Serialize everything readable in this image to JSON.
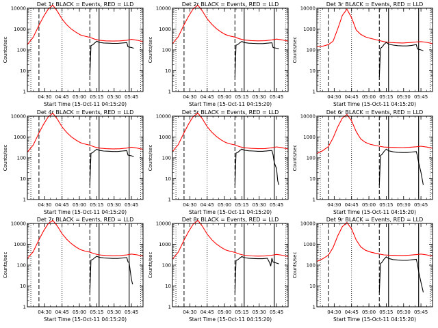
{
  "window": {
    "title": ""
  },
  "colors": {
    "events": "#000000",
    "lld": "#ff0000",
    "background": "#ffffff",
    "axes": "#000000"
  },
  "shared": {
    "ylabel": "Counts/sec",
    "xlabel": "Start Time (15-Oct-11 04:15:20)",
    "xticks": [
      "04:30",
      "04:45",
      "05:00",
      "05:15",
      "05:30",
      "05:45"
    ],
    "yticks": [
      "1",
      "10",
      "100",
      "1000",
      "10000"
    ]
  },
  "chart_data": [
    {
      "type": "line",
      "title": "Det 1r BLACK = Events, RED = LLD",
      "xlabel": "Start Time (15-Oct-11 04:15:20)",
      "ylabel": "Counts/sec",
      "x_range_minutes": [
        0,
        100
      ],
      "ylim": [
        1,
        10000
      ],
      "yscale": "log",
      "vlines": {
        "dotted": [
          3,
          30,
          98
        ],
        "dashed": [
          10,
          54
        ],
        "solid": [
          62,
          88
        ]
      },
      "series": [
        {
          "name": "RED = LLD",
          "color": "#ff0000",
          "x": [
            0,
            5,
            10,
            14,
            18,
            22,
            26,
            30,
            34,
            38,
            42,
            46,
            50,
            54,
            58,
            62,
            68,
            74,
            80,
            86,
            90,
            95,
            100
          ],
          "y": [
            180,
            400,
            1500,
            4000,
            9000,
            14000,
            7000,
            3000,
            1600,
            1000,
            700,
            520,
            450,
            400,
            330,
            290,
            270,
            265,
            270,
            290,
            320,
            290,
            250
          ]
        },
        {
          "name": "BLACK = Events",
          "color": "#000000",
          "x": [
            54,
            55,
            56,
            57,
            58,
            60,
            62,
            66,
            70,
            74,
            78,
            82,
            86,
            87,
            90,
            92
          ],
          "y": [
            6,
            160,
            170,
            185,
            210,
            260,
            230,
            215,
            210,
            205,
            205,
            215,
            225,
            140,
            130,
            120
          ]
        }
      ]
    },
    {
      "type": "line",
      "title": "Det 2r BLACK = Events, RED = LLD",
      "xlabel": "Start Time (15-Oct-11 04:15:20)",
      "ylabel": "Counts/sec",
      "x_range_minutes": [
        0,
        100
      ],
      "ylim": [
        1,
        10000
      ],
      "yscale": "log",
      "vlines": {
        "dotted": [
          3,
          30,
          98
        ],
        "dashed": [
          10,
          54
        ],
        "solid": [
          62,
          88
        ]
      },
      "series": [
        {
          "name": "RED = LLD",
          "color": "#ff0000",
          "x": [
            0,
            5,
            10,
            14,
            18,
            22,
            26,
            30,
            34,
            38,
            42,
            46,
            50,
            54,
            58,
            62,
            68,
            74,
            80,
            86,
            90,
            95,
            100
          ],
          "y": [
            200,
            420,
            1600,
            4200,
            9500,
            14000,
            7200,
            3100,
            1700,
            1050,
            720,
            540,
            460,
            410,
            340,
            300,
            280,
            270,
            275,
            300,
            330,
            300,
            260
          ]
        },
        {
          "name": "BLACK = Events",
          "color": "#000000",
          "x": [
            54,
            55,
            56,
            57,
            58,
            60,
            62,
            66,
            70,
            74,
            78,
            82,
            86,
            87,
            90,
            92
          ],
          "y": [
            5,
            170,
            175,
            190,
            215,
            255,
            225,
            210,
            205,
            200,
            200,
            210,
            220,
            130,
            120,
            110
          ]
        }
      ]
    },
    {
      "type": "line",
      "title": "Det 3r BLACK = Events, RED = LLD",
      "xlabel": "Start Time (15-Oct-11 04:15:20)",
      "ylabel": "Counts/sec",
      "x_range_minutes": [
        0,
        100
      ],
      "ylim": [
        1,
        10000
      ],
      "yscale": "log",
      "vlines": {
        "dotted": [
          3,
          30,
          98
        ],
        "dashed": [
          10,
          54
        ],
        "solid": [
          62,
          88
        ]
      },
      "series": [
        {
          "name": "RED = LLD",
          "color": "#ff0000",
          "x": [
            0,
            5,
            10,
            14,
            18,
            22,
            26,
            30,
            34,
            38,
            42,
            46,
            50,
            54,
            58,
            62,
            68,
            74,
            80,
            86,
            90,
            95,
            100
          ],
          "y": [
            140,
            150,
            180,
            260,
            1000,
            4500,
            9000,
            3500,
            900,
            550,
            420,
            360,
            320,
            280,
            250,
            230,
            220,
            215,
            225,
            240,
            250,
            230,
            200
          ]
        },
        {
          "name": "BLACK = Events",
          "color": "#000000",
          "x": [
            54,
            55,
            56,
            57,
            58,
            60,
            62,
            66,
            70,
            74,
            78,
            82,
            86,
            87,
            90,
            92
          ],
          "y": [
            5,
            120,
            130,
            150,
            180,
            230,
            190,
            170,
            160,
            155,
            155,
            165,
            180,
            110,
            100,
            90
          ]
        }
      ]
    },
    {
      "type": "line",
      "title": "Det 4r BLACK = Events, RED = LLD",
      "xlabel": "Start Time (15-Oct-11 04:15:20)",
      "ylabel": "Counts/sec",
      "x_range_minutes": [
        0,
        100
      ],
      "ylim": [
        1,
        10000
      ],
      "yscale": "log",
      "vlines": {
        "dotted": [
          3,
          30,
          98
        ],
        "dashed": [
          10,
          54
        ],
        "solid": [
          62,
          88
        ]
      },
      "series": [
        {
          "name": "RED = LLD",
          "color": "#ff0000",
          "x": [
            0,
            5,
            10,
            14,
            18,
            22,
            26,
            30,
            34,
            38,
            42,
            46,
            50,
            54,
            58,
            62,
            68,
            74,
            80,
            86,
            90,
            95,
            100
          ],
          "y": [
            190,
            410,
            1550,
            4100,
            9200,
            14000,
            7100,
            3050,
            1650,
            1020,
            710,
            530,
            455,
            405,
            335,
            295,
            275,
            268,
            272,
            295,
            325,
            295,
            255
          ]
        },
        {
          "name": "BLACK = Events",
          "color": "#000000",
          "x": [
            54,
            55,
            56,
            57,
            58,
            60,
            62,
            66,
            70,
            74,
            78,
            82,
            86,
            87,
            90,
            92
          ],
          "y": [
            5,
            165,
            172,
            188,
            212,
            258,
            228,
            212,
            208,
            202,
            202,
            212,
            222,
            135,
            125,
            115
          ]
        }
      ]
    },
    {
      "type": "line",
      "title": "Det 5r BLACK = Events, RED = LLD",
      "xlabel": "Start Time (15-Oct-11 04:15:20)",
      "ylabel": "Counts/sec",
      "x_range_minutes": [
        0,
        100
      ],
      "ylim": [
        1,
        10000
      ],
      "yscale": "log",
      "vlines": {
        "dotted": [
          3,
          30,
          98
        ],
        "dashed": [
          10,
          54
        ],
        "solid": [
          62,
          88
        ]
      },
      "series": [
        {
          "name": "RED = LLD",
          "color": "#ff0000",
          "x": [
            0,
            5,
            10,
            14,
            18,
            22,
            26,
            30,
            34,
            38,
            42,
            46,
            50,
            54,
            58,
            62,
            68,
            74,
            80,
            86,
            90,
            95,
            100
          ],
          "y": [
            200,
            430,
            1600,
            4300,
            9600,
            14000,
            7300,
            3150,
            1700,
            1060,
            730,
            545,
            465,
            415,
            345,
            305,
            285,
            275,
            280,
            305,
            335,
            305,
            265
          ]
        },
        {
          "name": "BLACK = Events",
          "color": "#000000",
          "x": [
            54,
            55,
            56,
            57,
            58,
            60,
            62,
            66,
            70,
            74,
            78,
            82,
            86,
            87,
            88,
            90,
            91,
            92
          ],
          "y": [
            5,
            170,
            178,
            192,
            218,
            262,
            232,
            218,
            212,
            206,
            206,
            216,
            226,
            140,
            60,
            30,
            8,
            5
          ]
        }
      ]
    },
    {
      "type": "line",
      "title": "Det 6r BLACK = Events, RED = LLD",
      "xlabel": "Start Time (15-Oct-11 04:15:20)",
      "ylabel": "Counts/sec",
      "x_range_minutes": [
        0,
        100
      ],
      "ylim": [
        1,
        10000
      ],
      "yscale": "log",
      "vlines": {
        "dotted": [
          3,
          30,
          98
        ],
        "dashed": [
          10,
          54
        ],
        "solid": [
          62,
          88
        ]
      },
      "series": [
        {
          "name": "RED = LLD",
          "color": "#ff0000",
          "x": [
            0,
            5,
            10,
            14,
            18,
            22,
            26,
            30,
            34,
            38,
            42,
            46,
            50,
            54,
            58,
            62,
            68,
            74,
            80,
            86,
            90,
            95,
            100
          ],
          "y": [
            160,
            220,
            350,
            900,
            3000,
            8000,
            12000,
            6000,
            1800,
            800,
            550,
            450,
            400,
            360,
            330,
            320,
            315,
            310,
            320,
            340,
            360,
            330,
            290
          ]
        },
        {
          "name": "BLACK = Events",
          "color": "#000000",
          "x": [
            54,
            55,
            56,
            57,
            58,
            60,
            62,
            66,
            70,
            74,
            78,
            82,
            86,
            87,
            88,
            90,
            92
          ],
          "y": [
            5,
            130,
            140,
            165,
            200,
            260,
            220,
            195,
            185,
            180,
            180,
            190,
            200,
            120,
            60,
            20,
            5
          ]
        }
      ]
    },
    {
      "type": "line",
      "title": "Det 7r BLACK = Events, RED = LLD",
      "xlabel": "Start Time (15-Oct-11 04:15:20)",
      "ylabel": "Counts/sec",
      "x_range_minutes": [
        0,
        100
      ],
      "ylim": [
        1,
        10000
      ],
      "yscale": "log",
      "vlines": {
        "dotted": [
          3,
          30,
          98
        ],
        "dashed": [
          10,
          54
        ],
        "solid": [
          62,
          88
        ]
      },
      "series": [
        {
          "name": "RED = LLD",
          "color": "#ff0000",
          "x": [
            0,
            5,
            10,
            14,
            18,
            22,
            26,
            30,
            34,
            38,
            42,
            46,
            50,
            54,
            58,
            62,
            68,
            74,
            80,
            86,
            90,
            95,
            100
          ],
          "y": [
            210,
            440,
            1650,
            4400,
            9800,
            14000,
            7400,
            3200,
            1750,
            1080,
            740,
            550,
            470,
            420,
            350,
            310,
            290,
            280,
            285,
            310,
            340,
            310,
            270
          ]
        },
        {
          "name": "BLACK = Events",
          "color": "#000000",
          "x": [
            54,
            55,
            56,
            57,
            58,
            60,
            62,
            66,
            70,
            74,
            78,
            82,
            86,
            87,
            88,
            90,
            91
          ],
          "y": [
            5,
            175,
            182,
            196,
            222,
            266,
            236,
            222,
            216,
            210,
            210,
            220,
            230,
            145,
            130,
            20,
            12
          ]
        }
      ]
    },
    {
      "type": "line",
      "title": "Det 8r BLACK = Events, RED = LLD",
      "xlabel": "Start Time (15-Oct-11 04:15:20)",
      "ylabel": "Counts/sec",
      "x_range_minutes": [
        0,
        100
      ],
      "ylim": [
        1,
        10000
      ],
      "yscale": "log",
      "vlines": {
        "dotted": [
          3,
          30,
          98
        ],
        "dashed": [
          10,
          54
        ],
        "solid": [
          62,
          88
        ]
      },
      "series": [
        {
          "name": "RED = LLD",
          "color": "#ff0000",
          "x": [
            0,
            5,
            10,
            14,
            18,
            22,
            26,
            30,
            34,
            38,
            42,
            46,
            50,
            54,
            58,
            62,
            68,
            74,
            80,
            86,
            90,
            95,
            100
          ],
          "y": [
            195,
            415,
            1580,
            4150,
            9300,
            14000,
            7150,
            3080,
            1660,
            1030,
            715,
            535,
            458,
            408,
            338,
            298,
            278,
            270,
            274,
            298,
            328,
            298,
            258
          ]
        },
        {
          "name": "BLACK = Events",
          "color": "#000000",
          "x": [
            54,
            55,
            56,
            57,
            58,
            60,
            62,
            66,
            70,
            74,
            78,
            82,
            84,
            85,
            86,
            87,
            90,
            92
          ],
          "y": [
            5,
            168,
            175,
            190,
            214,
            258,
            230,
            214,
            208,
            204,
            204,
            214,
            130,
            90,
            220,
            140,
            125,
            115
          ]
        }
      ]
    },
    {
      "type": "line",
      "title": "Det 9r BLACK = Events, RED = LLD",
      "xlabel": "Start Time (15-Oct-11 04:15:20)",
      "ylabel": "Counts/sec",
      "x_range_minutes": [
        0,
        100
      ],
      "ylim": [
        1,
        10000
      ],
      "yscale": "log",
      "vlines": {
        "dotted": [
          3,
          30,
          98
        ],
        "dashed": [
          10,
          54
        ],
        "solid": [
          62,
          88
        ]
      },
      "series": [
        {
          "name": "RED = LLD",
          "color": "#ff0000",
          "x": [
            0,
            5,
            10,
            14,
            18,
            22,
            26,
            30,
            34,
            38,
            42,
            46,
            50,
            54,
            58,
            62,
            68,
            74,
            80,
            86,
            90,
            95,
            100
          ],
          "y": [
            150,
            200,
            300,
            700,
            2500,
            7000,
            11000,
            5500,
            1600,
            750,
            520,
            430,
            380,
            340,
            310,
            300,
            295,
            290,
            300,
            320,
            340,
            310,
            270
          ]
        },
        {
          "name": "BLACK = Events",
          "color": "#000000",
          "x": [
            54,
            55,
            56,
            57,
            58,
            60,
            62,
            66,
            70,
            74,
            78,
            82,
            86,
            87,
            88,
            90,
            92
          ],
          "y": [
            5,
            120,
            130,
            155,
            190,
            250,
            210,
            185,
            175,
            170,
            170,
            180,
            190,
            110,
            50,
            15,
            5
          ]
        }
      ]
    }
  ]
}
